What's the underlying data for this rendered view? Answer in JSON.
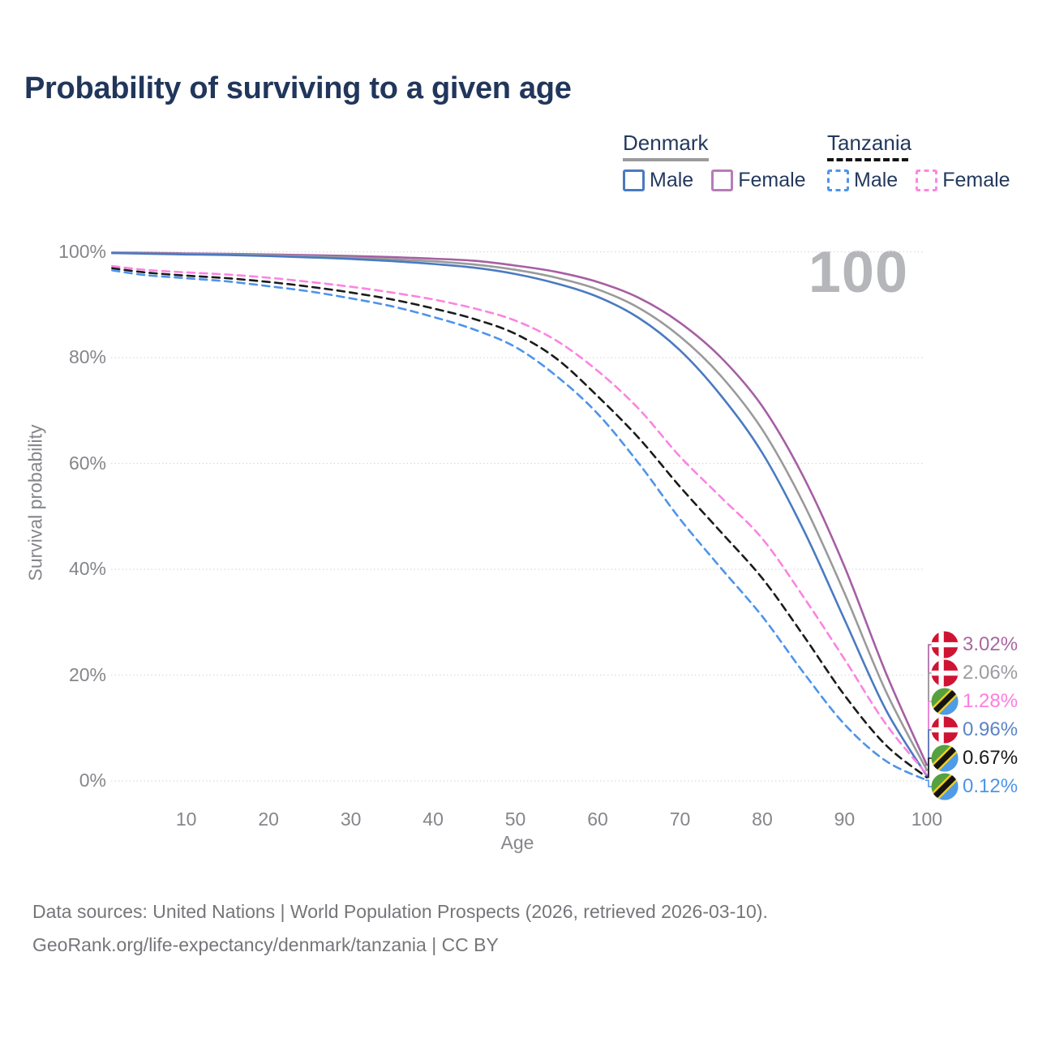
{
  "header": {
    "title": "Probability of surviving to a given age"
  },
  "legend": {
    "groups": [
      {
        "title": "Denmark",
        "line_style": "solid",
        "underline_color": "#9b9b9b",
        "items": [
          {
            "label": "Male",
            "color": "#4a7ac1"
          },
          {
            "label": "Female",
            "color": "#b87cb8"
          }
        ]
      },
      {
        "title": "Tanzania",
        "line_style": "dashed",
        "underline_color": "#141414",
        "items": [
          {
            "label": "Male",
            "color": "#4d94eb"
          },
          {
            "label": "Female",
            "color": "#ff85e0"
          }
        ]
      }
    ]
  },
  "watermark": "100",
  "chart_data": {
    "type": "line",
    "title": "Probability of surviving to a given age",
    "xlabel": "Age",
    "ylabel": "Survival probability",
    "xlim": [
      0,
      100
    ],
    "ylim": [
      0,
      100
    ],
    "grid": "horizontal",
    "legend_position": "top-right",
    "x_ticks": [
      "10",
      "20",
      "30",
      "40",
      "50",
      "60",
      "70",
      "80",
      "90",
      "100"
    ],
    "y_ticks": [
      {
        "value": 0,
        "label": "0%"
      },
      {
        "value": 20,
        "label": "20%"
      },
      {
        "value": 40,
        "label": "40%"
      },
      {
        "value": 60,
        "label": "60%"
      },
      {
        "value": 80,
        "label": "80%"
      },
      {
        "value": 100,
        "label": "100%"
      }
    ],
    "ages": [
      1,
      5,
      10,
      15,
      20,
      25,
      30,
      35,
      40,
      45,
      50,
      55,
      60,
      65,
      70,
      75,
      80,
      85,
      90,
      95,
      100
    ],
    "series": [
      {
        "id": "denmark-female",
        "country": "Denmark",
        "sex": "Female",
        "style": "solid",
        "color": "#a55fa3",
        "label_color": "#a8689e",
        "flag": "denmark",
        "end_label": "3.02%",
        "end_value": 3.02,
        "values": [
          99.85,
          99.8,
          99.7,
          99.6,
          99.5,
          99.35,
          99.2,
          99.0,
          98.7,
          98.3,
          97.4,
          96.2,
          94.3,
          91.3,
          86.6,
          80.0,
          70.8,
          57.5,
          40.5,
          20.5,
          3.02
        ]
      },
      {
        "id": "denmark-total",
        "country": "Denmark",
        "sex": "Both",
        "style": "solid",
        "color": "#9a9a9a",
        "label_color": "#9a9ca0",
        "flag": "denmark",
        "end_label": "2.06%",
        "end_value": 2.06,
        "values": [
          99.8,
          99.7,
          99.6,
          99.5,
          99.35,
          99.15,
          98.9,
          98.6,
          98.2,
          97.6,
          96.6,
          95.1,
          92.9,
          89.4,
          84.0,
          76.5,
          66.4,
          52.5,
          35.5,
          17.0,
          2.06
        ]
      },
      {
        "id": "denmark-male",
        "country": "Denmark",
        "sex": "Male",
        "style": "solid",
        "color": "#4a7ac1",
        "label_color": "#5b84c4",
        "flag": "denmark",
        "end_label": "0.96%",
        "end_value": 0.96,
        "values": [
          99.75,
          99.65,
          99.5,
          99.4,
          99.2,
          98.95,
          98.65,
          98.25,
          97.7,
          97.0,
          95.8,
          94.0,
          91.5,
          87.5,
          81.4,
          72.8,
          62.0,
          47.5,
          30.5,
          13.5,
          0.96
        ]
      },
      {
        "id": "tanzania-female",
        "country": "Tanzania",
        "sex": "Female",
        "style": "dashed",
        "color": "#fb84e1",
        "label_color": "#ff7ce0",
        "flag": "tanzania",
        "end_label": "1.28%",
        "end_value": 1.28,
        "values": [
          97.3,
          96.6,
          96.1,
          95.7,
          95.1,
          94.3,
          93.4,
          92.3,
          91.0,
          89.3,
          87.0,
          83.2,
          77.5,
          70.3,
          61.3,
          53.6,
          45.8,
          34.8,
          23.0,
          10.8,
          1.28
        ]
      },
      {
        "id": "tanzania-total",
        "country": "Tanzania",
        "sex": "Both",
        "style": "dashed",
        "color": "#1b1b1b",
        "label_color": "#1b1b1b",
        "flag": "tanzania",
        "end_label": "0.67%",
        "end_value": 0.67,
        "values": [
          96.9,
          96.1,
          95.5,
          95.0,
          94.3,
          93.4,
          92.3,
          91.0,
          89.3,
          87.3,
          84.5,
          79.8,
          72.7,
          64.8,
          55.6,
          47.0,
          38.3,
          27.5,
          16.2,
          6.8,
          0.67
        ]
      },
      {
        "id": "tanzania-male",
        "country": "Tanzania",
        "sex": "Male",
        "style": "dashed",
        "color": "#4d94eb",
        "label_color": "#4d94eb",
        "flag": "tanzania",
        "end_label": "0.12%",
        "end_value": 0.12,
        "values": [
          96.5,
          95.6,
          95.0,
          94.4,
          93.5,
          92.5,
          91.2,
          89.7,
          87.7,
          85.3,
          82.0,
          76.5,
          69.4,
          60.0,
          49.5,
          40.2,
          31.1,
          20.5,
          10.7,
          3.8,
          0.12
        ]
      }
    ]
  },
  "footer": {
    "line1": "Data sources: United Nations | World Population Prospects (2026, retrieved 2026-03-10).",
    "line2": "GeoRank.org/life-expectancy/denmark/tanzania | CC BY"
  }
}
